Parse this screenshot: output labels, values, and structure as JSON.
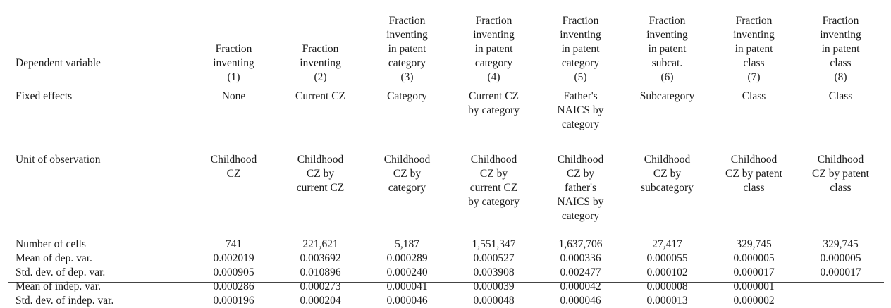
{
  "header": {
    "label": "Dependent variable",
    "columns": [
      "Fraction\ninventing\n(1)",
      "Fraction\ninventing\n(2)",
      "Fraction\ninventing\nin patent\ncategory\n(3)",
      "Fraction\ninventing\nin patent\ncategory\n(4)",
      "Fraction\ninventing\nin patent\ncategory\n(5)",
      "Fraction\ninventing\nin patent\nsubcat.\n(6)",
      "Fraction\ninventing\nin patent\nclass\n(7)",
      "Fraction\ninventing\nin patent\nclass\n(8)"
    ]
  },
  "rows": [
    {
      "label": "Fixed effects",
      "values": [
        "None",
        "Current CZ",
        "Category",
        "Current CZ\nby category",
        "Father's\nNAICS by\ncategory",
        "Subcategory",
        "Class",
        "Class"
      ]
    },
    {
      "label": "Unit of observation",
      "values": [
        "Childhood\nCZ",
        "Childhood\nCZ by\ncurrent CZ",
        "Childhood\nCZ by\ncategory",
        "Childhood\nCZ by\ncurrent CZ\nby category",
        "Childhood\nCZ by\nfather's\nNAICS by\ncategory",
        "Childhood\nCZ by\nsubcategory",
        "Childhood\nCZ by patent\nclass",
        "Childhood\nCZ by patent\nclass"
      ]
    },
    {
      "label": "Number of cells",
      "values": [
        "741",
        "221,621",
        "5,187",
        "1,551,347",
        "1,637,706",
        "27,417",
        "329,745",
        "329,745"
      ]
    },
    {
      "label": "Mean of dep. var.",
      "values": [
        "0.002019",
        "0.003692",
        "0.000289",
        "0.000527",
        "0.000336",
        "0.000055",
        "0.000005",
        "0.000005"
      ]
    },
    {
      "label": "Std. dev. of dep. var.",
      "values": [
        "0.000905",
        "0.010896",
        "0.000240",
        "0.003908",
        "0.002477",
        "0.000102",
        "0.000017",
        "0.000017"
      ]
    },
    {
      "label": "Mean of indep. var.",
      "values": [
        "0.000286",
        "0.000273",
        "0.000041",
        "0.000039",
        "0.000042",
        "0.000008",
        "0.000001",
        ""
      ]
    },
    {
      "label": "Std. dev. of indep. var.",
      "values": [
        "0.000196",
        "0.000204",
        "0.000046",
        "0.000048",
        "0.000046",
        "0.000013",
        "0.000002",
        ""
      ]
    }
  ]
}
